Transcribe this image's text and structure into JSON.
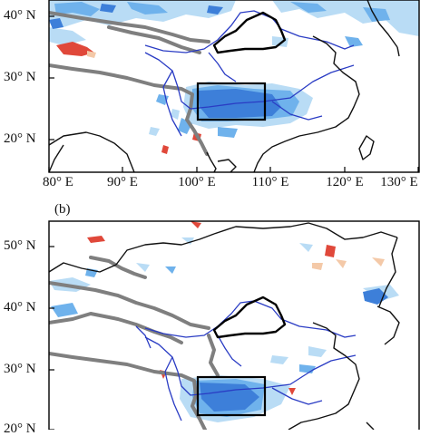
{
  "panel_b_label": "(b)",
  "panel_a": {
    "lat_ticks": [
      "40° N",
      "30° N",
      "20° N"
    ],
    "lon_ticks": [
      "80° E",
      "90° E",
      "100° E",
      "110° E",
      "120° E",
      "130° E"
    ]
  },
  "panel_b": {
    "lat_ticks": [
      "50° N",
      "40° N",
      "30° N",
      "20° N"
    ]
  },
  "colors": {
    "frame": "#000000",
    "coastline": "#111111",
    "plateau_contour": "#7f7f7f",
    "rivers": "#2a3cc4",
    "positive_blue_dark": "#3d7fd9",
    "positive_blue_mid": "#6fb2ec",
    "positive_blue_light": "#b9dcf5",
    "negative_red": "#e0483a",
    "negative_orange": "#f4c9a8",
    "study_box": "#000000"
  },
  "map_features": {
    "boxes": [
      "Sichuan Basin box",
      "Loess Plateau outline"
    ],
    "coastline": true,
    "rivers": [
      "Yellow River",
      "Yangtze River"
    ]
  }
}
